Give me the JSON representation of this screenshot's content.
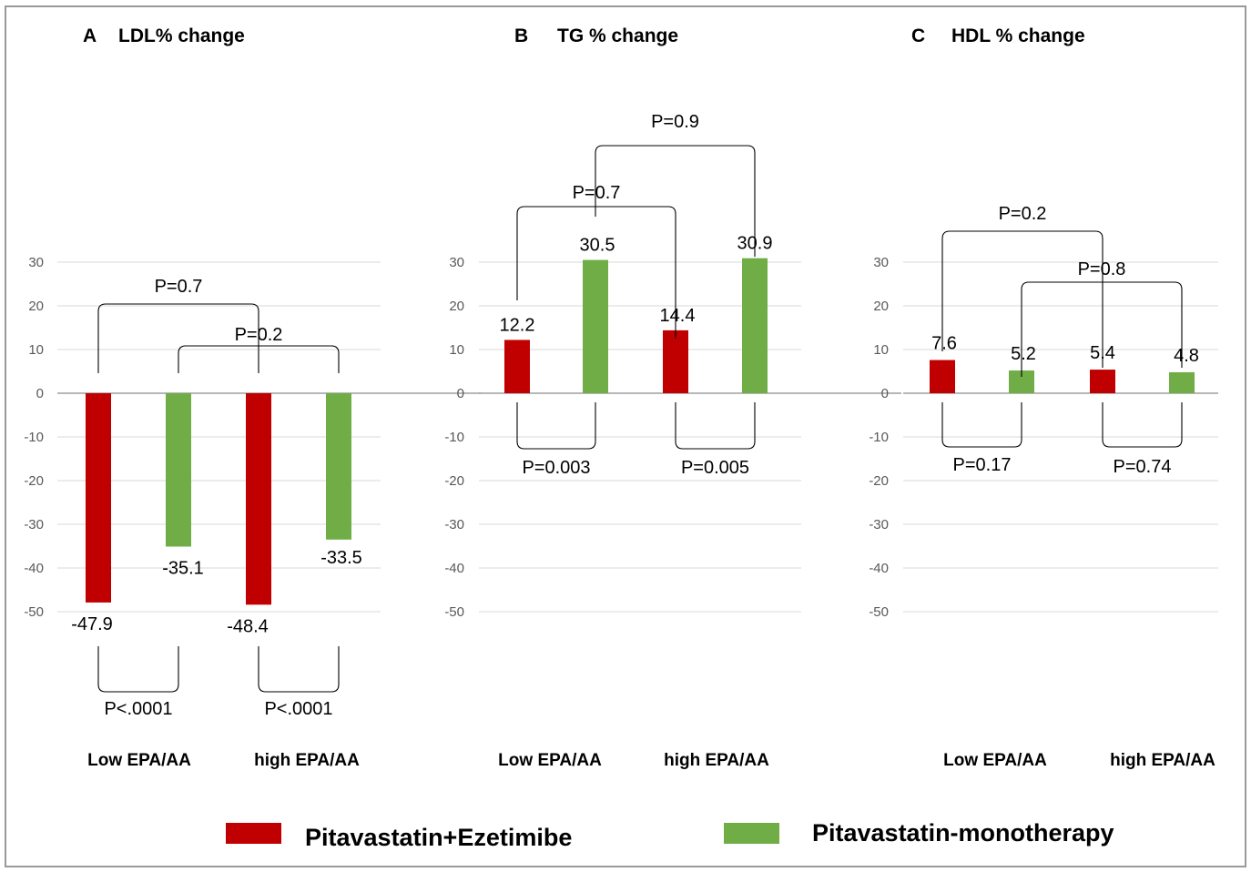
{
  "colors": {
    "combo": "#c00000",
    "mono": "#70ad47"
  },
  "legend": [
    {
      "name": "Pitavastatin+Ezetimibe",
      "color": "#c00000"
    },
    {
      "name": "Pitavastatin-monotherapy",
      "color": "#70ad47"
    }
  ],
  "chart_data": [
    {
      "type": "bar",
      "letter": "A",
      "title": "LDL% change",
      "categories": [
        "Low EPA/AA",
        "high EPA/AA"
      ],
      "yticks": [
        30,
        20,
        10,
        0,
        -10,
        -20,
        -30,
        -40,
        -50
      ],
      "series": [
        {
          "name": "Pitavastatin+Ezetimibe",
          "values": [
            -47.9,
            -48.4
          ]
        },
        {
          "name": "Pitavastatin-monotherapy",
          "values": [
            -35.1,
            -33.5
          ]
        }
      ],
      "data_labels": [
        "-47.9",
        "-35.1",
        "-48.4",
        "-33.5"
      ],
      "comparisons": [
        {
          "bars": [
            0,
            2
          ],
          "label": "P=0.7"
        },
        {
          "bars": [
            1,
            3
          ],
          "label": "P=0.2"
        },
        {
          "bars": [
            0,
            1
          ],
          "label": "P<.0001"
        },
        {
          "bars": [
            2,
            3
          ],
          "label": "P<.0001"
        }
      ]
    },
    {
      "type": "bar",
      "letter": "B",
      "title": "TG % change",
      "categories": [
        "Low EPA/AA",
        "high EPA/AA"
      ],
      "yticks": [
        30,
        20,
        10,
        0,
        -10,
        -20,
        -30,
        -40,
        -50
      ],
      "series": [
        {
          "name": "Pitavastatin+Ezetimibe",
          "values": [
            12.2,
            14.4
          ]
        },
        {
          "name": "Pitavastatin-monotherapy",
          "values": [
            30.5,
            30.9
          ]
        }
      ],
      "data_labels": [
        "12.2",
        "30.5",
        "14.4",
        "30.9"
      ],
      "comparisons": [
        {
          "bars": [
            1,
            3
          ],
          "label": "P=0.9"
        },
        {
          "bars": [
            0,
            2
          ],
          "label": "P=0.7"
        },
        {
          "bars": [
            0,
            1
          ],
          "label": "P=0.003"
        },
        {
          "bars": [
            2,
            3
          ],
          "label": "P=0.005"
        }
      ]
    },
    {
      "type": "bar",
      "letter": "C",
      "title": "HDL % change",
      "categories": [
        "Low EPA/AA",
        "high EPA/AA"
      ],
      "yticks": [
        30,
        20,
        10,
        0,
        -10,
        -20,
        -30,
        -40,
        -50
      ],
      "series": [
        {
          "name": "Pitavastatin+Ezetimibe",
          "values": [
            7.6,
            5.4
          ]
        },
        {
          "name": "Pitavastatin-monotherapy",
          "values": [
            5.2,
            4.8
          ]
        }
      ],
      "data_labels": [
        "7.6",
        "5.2",
        "5.4",
        "4.8"
      ],
      "comparisons": [
        {
          "bars": [
            0,
            2
          ],
          "label": "P=0.2"
        },
        {
          "bars": [
            1,
            3
          ],
          "label": "P=0.8"
        },
        {
          "bars": [
            0,
            1
          ],
          "label": "P=0.17"
        },
        {
          "bars": [
            2,
            3
          ],
          "label": "P=0.74"
        }
      ]
    }
  ]
}
